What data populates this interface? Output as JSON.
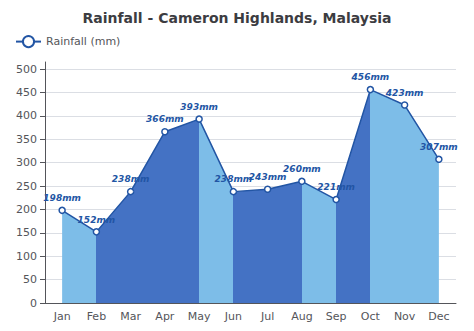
{
  "chart_data": {
    "type": "area",
    "title": "Rainfall - Cameron Highlands, Malaysia",
    "categories": [
      "Jan",
      "Feb",
      "Mar",
      "Apr",
      "May",
      "Jun",
      "Jul",
      "Aug",
      "Sep",
      "Oct",
      "Nov",
      "Dec"
    ],
    "series": [
      {
        "name": "Rainfall (mm)",
        "color": "#2255a4",
        "values": [
          198,
          152,
          238,
          366,
          393,
          238,
          243,
          260,
          221,
          456,
          423,
          307
        ],
        "value_labels": [
          "198mm",
          "152mm",
          "238mm",
          "366mm",
          "393mm",
          "238mm",
          "243mm",
          "260mm",
          "221mm",
          "456mm",
          "423mm",
          "307mm"
        ]
      }
    ],
    "colors": [
      "#7dbde8",
      "#4472c4",
      "#4472c4",
      "#4472c4",
      "#7dbde8",
      "#4472c4",
      "#4472c4",
      "#7dbde8",
      "#4472c4",
      "#7dbde8",
      "#7dbde8"
    ],
    "ylim": [
      0,
      515
    ],
    "yticks": [
      0,
      50,
      100,
      150,
      200,
      250,
      300,
      350,
      400,
      450,
      500
    ],
    "grid": true,
    "legend": "upper left",
    "data_labels": true,
    "marker": "circle"
  }
}
